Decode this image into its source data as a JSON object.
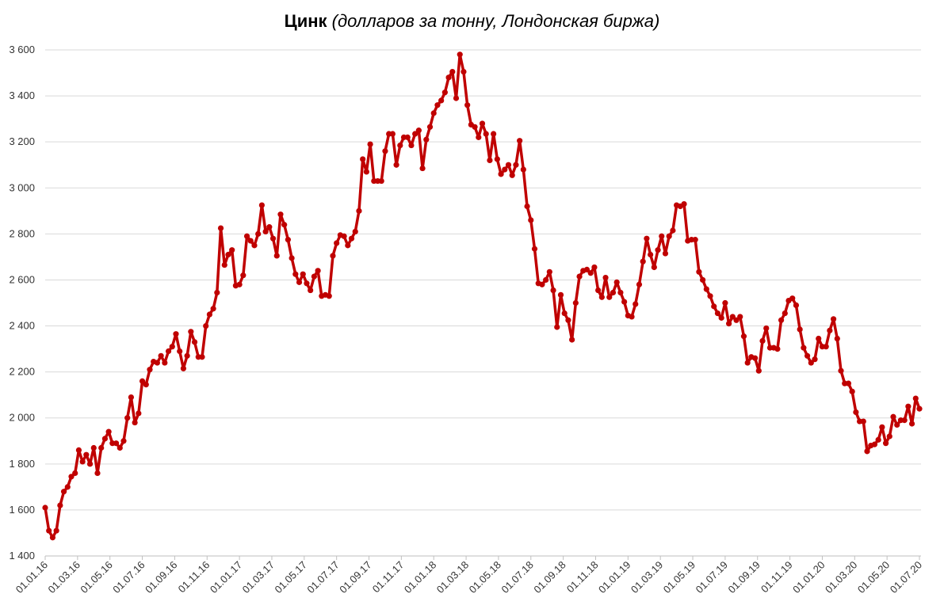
{
  "chart_data": {
    "type": "line",
    "title": "Цинк",
    "subtitle": "(долларов за тонну, Лондонская биржа)",
    "xlabel": "",
    "ylabel": "",
    "ylim": [
      1400,
      3600
    ],
    "yticks": [
      1400,
      1600,
      1800,
      2000,
      2200,
      2400,
      2600,
      2800,
      3000,
      3200,
      3400,
      3600
    ],
    "ytick_labels": [
      "1 400",
      "1 600",
      "1 800",
      "2 000",
      "2 200",
      "2 400",
      "2 600",
      "2 800",
      "3 000",
      "3 200",
      "3 400",
      "3 600"
    ],
    "xtick_labels": [
      "01.01.16",
      "01.03.16",
      "01.05.16",
      "01.07.16",
      "01.09.16",
      "01.11.16",
      "01.01.17",
      "01.03.17",
      "01.05.17",
      "01.07.17",
      "01.09.17",
      "01.11.17",
      "01.01.18",
      "01.03.18",
      "01.05.18",
      "01.07.18",
      "01.09.18",
      "01.11.18",
      "01.01.19",
      "01.03.19",
      "01.05.19",
      "01.07.19",
      "01.09.19",
      "01.11.19",
      "01.01.20",
      "01.03.20",
      "01.05.20",
      "01.07.20"
    ],
    "grid": true,
    "legend": "none",
    "color": "#c00000",
    "series": [
      {
        "values": [
          1610,
          1510,
          1480,
          1510,
          1620,
          1680,
          1700,
          1745,
          1760,
          1860,
          1810,
          1840,
          1800,
          1870,
          1760,
          1870,
          1910,
          1940,
          1890,
          1890,
          1870,
          1900,
          2000,
          2090,
          1980,
          2020,
          2160,
          2145,
          2210,
          2245,
          2240,
          2270,
          2240,
          2290,
          2310,
          2365,
          2290,
          2215,
          2270,
          2375,
          2330,
          2265,
          2265,
          2400,
          2450,
          2475,
          2545,
          2825,
          2665,
          2710,
          2730,
          2575,
          2580,
          2620,
          2790,
          2770,
          2750,
          2800,
          2925,
          2810,
          2830,
          2780,
          2705,
          2885,
          2840,
          2775,
          2695,
          2625,
          2590,
          2625,
          2585,
          2555,
          2615,
          2640,
          2530,
          2535,
          2530,
          2705,
          2760,
          2795,
          2790,
          2750,
          2780,
          2810,
          2900,
          3125,
          3070,
          3190,
          3030,
          3030,
          3030,
          3160,
          3235,
          3235,
          3100,
          3185,
          3220,
          3220,
          3185,
          3235,
          3250,
          3085,
          3210,
          3265,
          3325,
          3360,
          3380,
          3415,
          3480,
          3505,
          3390,
          3580,
          3505,
          3360,
          3275,
          3265,
          3220,
          3280,
          3235,
          3120,
          3235,
          3125,
          3060,
          3080,
          3100,
          3055,
          3100,
          3205,
          3080,
          2920,
          2860,
          2735,
          2585,
          2580,
          2600,
          2635,
          2555,
          2395,
          2535,
          2455,
          2425,
          2340,
          2500,
          2615,
          2640,
          2645,
          2630,
          2655,
          2555,
          2525,
          2610,
          2525,
          2545,
          2590,
          2545,
          2505,
          2445,
          2440,
          2495,
          2580,
          2680,
          2780,
          2710,
          2655,
          2730,
          2790,
          2715,
          2790,
          2815,
          2925,
          2920,
          2930,
          2770,
          2775,
          2775,
          2635,
          2600,
          2560,
          2530,
          2485,
          2455,
          2435,
          2500,
          2410,
          2440,
          2425,
          2440,
          2355,
          2240,
          2265,
          2260,
          2205,
          2335,
          2390,
          2305,
          2305,
          2300,
          2425,
          2455,
          2510,
          2520,
          2490,
          2385,
          2305,
          2270,
          2240,
          2255,
          2345,
          2310,
          2310,
          2380,
          2430,
          2345,
          2205,
          2150,
          2150,
          2115,
          2025,
          1985,
          1985,
          1855,
          1880,
          1885,
          1905,
          1960,
          1890,
          1920,
          2005,
          1970,
          1990,
          1990,
          2050,
          1975,
          2085,
          2040
        ]
      }
    ]
  }
}
